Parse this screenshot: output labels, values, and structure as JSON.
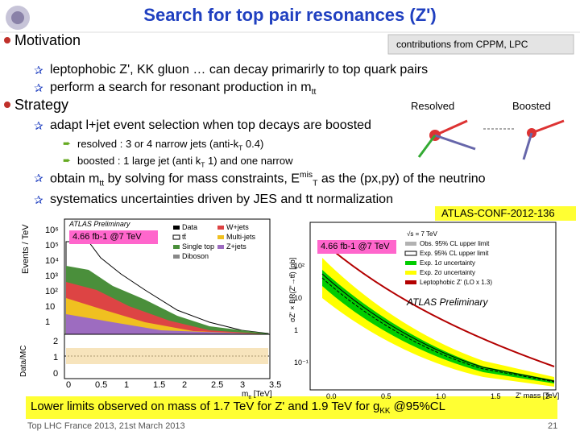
{
  "header": {
    "title": "Search for top pair resonances (Z')"
  },
  "motivation": {
    "heading": "Motivation",
    "note": "contributions from CPPM, LPC",
    "bullets": [
      [
        {
          "text": "leptophobic Z', KK gluon … can decay primarirly to top quark pairs"
        }
      ],
      [
        {
          "text": "perform a search for resonant production in m"
        },
        {
          "sub": "tt"
        }
      ]
    ]
  },
  "strategy": {
    "heading": "Strategy",
    "bullets": [
      [
        {
          "text": "adapt l+jet event selection when top decays are boosted"
        }
      ],
      [
        {
          "text": "obtain m"
        },
        {
          "sub": "tt"
        },
        {
          "text": " by solving for mass constraints, E"
        },
        {
          "sup": "mis"
        },
        {
          "sub": "T"
        },
        {
          "text": " as the (px,py) of the neutrino"
        }
      ],
      [
        {
          "text": "systematics uncertainties driven by JES and tt normalization"
        }
      ]
    ],
    "subbullets": [
      [
        {
          "text": "resolved : 3 or 4 narrow jets (anti-k"
        },
        {
          "sub": "T"
        },
        {
          "text": " 0.4)"
        }
      ],
      [
        {
          "text": "boosted : 1 large jet (anti k"
        },
        {
          "sub": "T"
        },
        {
          "text": " 1) and one narrow"
        }
      ]
    ]
  },
  "figures": {
    "resolved": "Resolved",
    "boosted": "Boosted",
    "reference": "ATLAS-CONF-2012-136",
    "left": {
      "lumi": "4.66 fb-1 @7 TeV",
      "atlas": "ATLAS Preliminary",
      "ylabel": "Events / TeV",
      "ratio_label": "Data/MC",
      "xlabel": [
        {
          "text": "m"
        },
        {
          "sub": "tt"
        },
        {
          "text": " [TeV]"
        }
      ],
      "yticks": [
        "10⁶",
        "10⁵",
        "10⁴",
        "10³",
        "10²",
        "10",
        "1"
      ],
      "ratio_ticks": [
        "2",
        "1",
        "0"
      ],
      "xticks": [
        "0",
        "0.5",
        "1",
        "1.5",
        "2",
        "2.5",
        "3",
        "3.5"
      ],
      "legend": [
        "Data",
        "tt̄",
        "Single top",
        "W+jets",
        "Multi-jets",
        "Z+jets",
        "Diboson"
      ]
    },
    "right": {
      "lumi": "4.66 fb-1 @7 TeV",
      "atlas": "ATLAS Preliminary",
      "ylabel": "σZ' × BR(Z'→tt̄) [pb]",
      "xlabel": "Z' mass [TeV]",
      "yticks": [
        "10²",
        "10",
        "1",
        "10⁻¹"
      ],
      "xticks": [
        "0.0",
        "0.5",
        "1.0",
        "1.5",
        "2"
      ],
      "legend": [
        "√s = 7 TeV",
        "Obs. 95% CL upper limit",
        "Exp. 95% CL upper limit",
        "Exp. 1σ uncertainty",
        "Exp. 2σ uncertainty",
        "Leptophobic Z' (LO x 1.3)"
      ]
    }
  },
  "conclusion": [
    {
      "text": "Lower limits observed on mass of 1.7 TeV for Z' and 1.9 TeV for g"
    },
    {
      "sub": "KK"
    },
    {
      "text": " @95%CL"
    }
  ],
  "footer": {
    "event": "Top LHC France 2013, 21st March 2013",
    "page": "21"
  }
}
